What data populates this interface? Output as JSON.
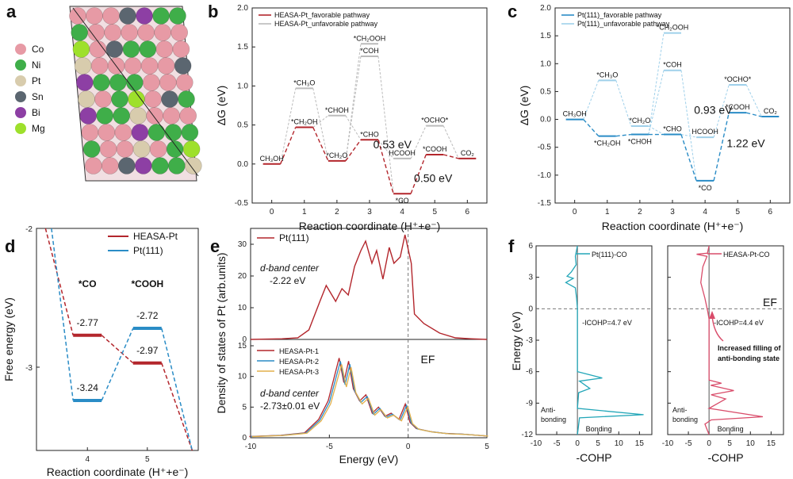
{
  "colors": {
    "red": "#b3262c",
    "red_light": "#e8a0a3",
    "blue": "#2a8cc6",
    "blue_light": "#9fd0ea",
    "gray": "#bbbbbb",
    "yellow": "#e3b04b",
    "teal": "#22a6b8",
    "pink": "#d94c6a",
    "co": "#e79aa5",
    "ni": "#3fae49",
    "pt": "#d8ccad",
    "sn": "#5b6670",
    "bi": "#8d3fa4",
    "mg": "#9ee02c"
  },
  "panels": {
    "a": "a",
    "b": "b",
    "c": "c",
    "d": "d",
    "e": "e",
    "f": "f"
  },
  "panel_a": {
    "legend": [
      "Co",
      "Ni",
      "Pt",
      "Sn",
      "Bi",
      "Mg"
    ],
    "icon": "alloy-surface-slab-icon"
  },
  "chart_data": [
    {
      "id": "b",
      "type": "line",
      "title": "",
      "xlabel": "Reaction coordinate (H⁺+e⁻)",
      "ylabel": "ΔG (eV)",
      "xlim": [
        -0.6,
        6.6
      ],
      "ylim": [
        -0.5,
        2.0
      ],
      "xticks": [
        "0",
        "1",
        "2",
        "3",
        "4",
        "5",
        "6"
      ],
      "yticks": [
        "-0.5",
        "0.0",
        "0.5",
        "1.0",
        "1.5",
        "2.0"
      ],
      "legend": [
        "HEASA-Pt_favorable pathway",
        "HEASA-Pt_unfavorable pathway"
      ],
      "favorable": [
        {
          "x": 0,
          "y": 0.0,
          "label": "CH₃OH"
        },
        {
          "x": 1,
          "y": 0.47,
          "label": "*CH₂OH"
        },
        {
          "x": 2,
          "y": 0.04,
          "label": "*CH₂O"
        },
        {
          "x": 3,
          "y": 0.31,
          "label": "*CHO"
        },
        {
          "x": 4,
          "y": -0.38,
          "label": "*CO"
        },
        {
          "x": 5,
          "y": 0.12,
          "label": "*COOH"
        },
        {
          "x": 6,
          "y": 0.07,
          "label": "CO₂"
        }
      ],
      "unfavorable": [
        {
          "x": 1,
          "y": 0.97,
          "label": "*CH₃O"
        },
        {
          "x": 2,
          "y": 0.62,
          "label": "*CHOH"
        },
        {
          "x": 3,
          "y": 1.54,
          "label": "*CH₂OOH"
        },
        {
          "x": 3,
          "y": 1.38,
          "label": "*COH"
        },
        {
          "x": 4,
          "y": 0.07,
          "label": "HCOOH"
        },
        {
          "x": 5,
          "y": 0.49,
          "label": "*OCHO*"
        }
      ],
      "annotations": [
        "0.53 eV",
        "0.50 eV"
      ]
    },
    {
      "id": "c",
      "type": "line",
      "xlabel": "Reaction coordinate (H⁺+e⁻)",
      "ylabel": "ΔG (eV)",
      "xlim": [
        -0.6,
        6.6
      ],
      "ylim": [
        -1.5,
        2.0
      ],
      "xticks": [
        "0",
        "1",
        "2",
        "3",
        "4",
        "5",
        "6"
      ],
      "yticks": [
        "-1.5",
        "-1.0",
        "-0.5",
        "0.0",
        "0.5",
        "1.0",
        "1.5",
        "2.0"
      ],
      "legend": [
        "Pt(111)_favorable pathway",
        "Pt(111)_unfavorable pathway"
      ],
      "favorable": [
        {
          "x": 0,
          "y": 0.0,
          "label": "CH₃OH"
        },
        {
          "x": 1,
          "y": -0.3,
          "label": "*CH₂OH"
        },
        {
          "x": 2,
          "y": -0.27,
          "label": "*CHOH"
        },
        {
          "x": 3,
          "y": -0.27,
          "label": "*CHO"
        },
        {
          "x": 4,
          "y": -1.1,
          "label": "*CO"
        },
        {
          "x": 5,
          "y": 0.12,
          "label": "*COOH"
        },
        {
          "x": 6,
          "y": 0.05,
          "label": "CO₂"
        }
      ],
      "unfavorable": [
        {
          "x": 1,
          "y": 0.7,
          "label": "*CH₃O"
        },
        {
          "x": 2,
          "y": -0.12,
          "label": "*CH₂O"
        },
        {
          "x": 3,
          "y": 1.55,
          "label": "*CH₂OOH"
        },
        {
          "x": 3,
          "y": 0.88,
          "label": "*COH"
        },
        {
          "x": 4,
          "y": -0.32,
          "label": "HCOOH"
        },
        {
          "x": 5,
          "y": 0.62,
          "label": "*OCHO*"
        }
      ],
      "annotations": [
        "0.93 eV",
        "1.22 eV"
      ]
    },
    {
      "id": "d",
      "type": "line",
      "xlabel": "Reaction coordinate (H⁺+e⁻)",
      "ylabel": "Free energy (eV)",
      "xlim": [
        3.15,
        5.85
      ],
      "ylim": [
        -3.6,
        -2.0
      ],
      "xticks": [
        "4",
        "5"
      ],
      "yticks": [
        "-2",
        "-3"
      ],
      "legend": [
        "HEASA-Pt",
        "Pt(111)"
      ],
      "categories": [
        "*CO",
        "*COOH"
      ],
      "series": [
        {
          "name": "HEASA-Pt",
          "values": [
            -2.77,
            -2.97
          ]
        },
        {
          "name": "Pt(111)",
          "values": [
            -3.24,
            -2.72
          ]
        }
      ],
      "value_labels": [
        "-2.77",
        "-3.24",
        "-2.72",
        "-2.97"
      ]
    },
    {
      "id": "e",
      "type": "line",
      "xlabel": "Energy (eV)",
      "ylabel": "Density of states of Pt (arb.units)",
      "xlim": [
        -10,
        5
      ],
      "xticks": [
        "-10",
        "-5",
        "0",
        "5"
      ],
      "top": {
        "yticks": [
          "0",
          "10",
          "20",
          "30"
        ],
        "legend": [
          "Pt(111)"
        ],
        "dband_label": "d-band center",
        "dband_value": "-2.22 eV"
      },
      "bottom": {
        "yticks": [
          "0",
          "5",
          "10",
          "15"
        ],
        "legend": [
          "HEASA-Pt-1",
          "HEASA-Pt-2",
          "HEASA-Pt-3"
        ],
        "dband_label": "d-band center",
        "dband_value": "-2.73±0.01 eV",
        "fermi_label": "EF"
      }
    },
    {
      "id": "f",
      "type": "line",
      "ylabel": "Energy (eV)",
      "xlabel": "-COHP",
      "ylim": [
        -12,
        6
      ],
      "yticks": [
        "6",
        "3",
        "0",
        "-3",
        "-6",
        "-9",
        "-12"
      ],
      "xticks": [
        "-10",
        "-5",
        "0",
        "5",
        "10",
        "15"
      ],
      "left": {
        "legend": "Pt(111)-CO",
        "icohp": "-ICOHP=4.7 eV",
        "anti": "Anti-bonding",
        "bond": "Bonding"
      },
      "right": {
        "legend": "HEASA-Pt-CO",
        "icohp": "-ICOHP=4.4 eV",
        "note": "Increased filling of anti-bonding state",
        "anti": "Anti-bonding",
        "bond": "Bonding",
        "fermi_label": "EF"
      }
    }
  ]
}
